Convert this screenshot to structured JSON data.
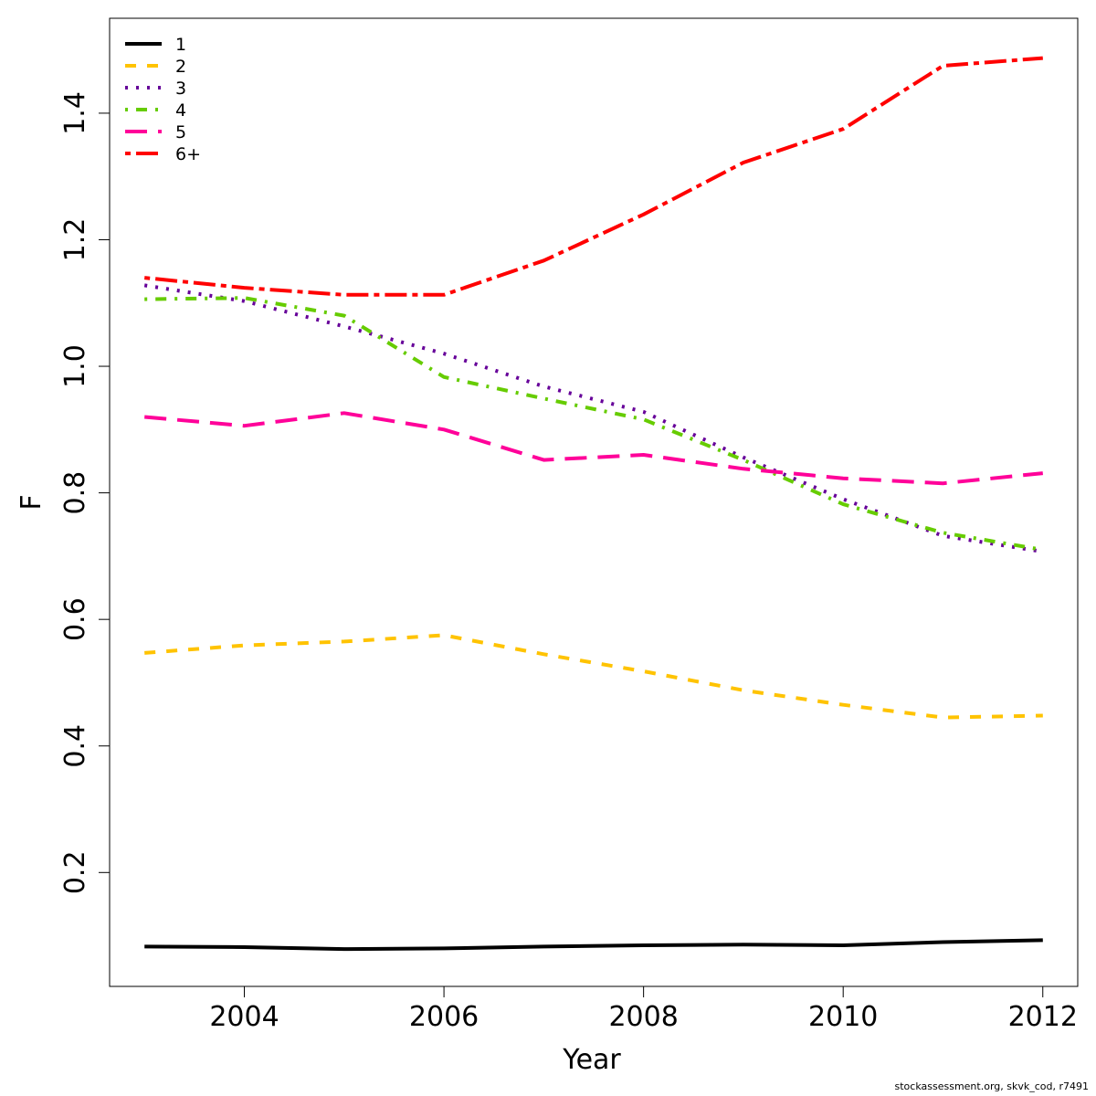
{
  "chart_data": {
    "type": "line",
    "title": "",
    "xlabel": "Year",
    "ylabel": "F",
    "xlim": [
      2002.65,
      2012.35
    ],
    "ylim": [
      0.02,
      1.55
    ],
    "x_ticks": [
      2004,
      2006,
      2008,
      2010,
      2012
    ],
    "x_tick_labels": [
      "2004",
      "2006",
      "2008",
      "2010",
      "2012"
    ],
    "y_ticks": [
      0.2,
      0.4,
      0.6,
      0.8,
      1.0,
      1.2,
      1.4
    ],
    "y_tick_labels": [
      "0.2",
      "0.4",
      "0.6",
      "0.8",
      "1.0",
      "1.2",
      "1.4"
    ],
    "grid": false,
    "legend_position": "top-left",
    "x": [
      2003,
      2004,
      2005,
      2006,
      2007,
      2008,
      2009,
      2010,
      2011,
      2012
    ],
    "series": [
      {
        "name": "1",
        "color": "#000000",
        "dash": "solid",
        "values": [
          0.083,
          0.082,
          0.079,
          0.08,
          0.083,
          0.085,
          0.086,
          0.085,
          0.09,
          0.093
        ]
      },
      {
        "name": "2",
        "color": "#FFC300",
        "dash": "dashed",
        "values": [
          0.547,
          0.559,
          0.565,
          0.575,
          0.545,
          0.518,
          0.488,
          0.465,
          0.445,
          0.448
        ]
      },
      {
        "name": "3",
        "color": "#660099",
        "dash": "dotted",
        "values": [
          1.128,
          1.103,
          1.063,
          1.02,
          0.968,
          0.928,
          0.856,
          0.79,
          0.732,
          0.707
        ]
      },
      {
        "name": "4",
        "color": "#66CC00",
        "dash": "dotdash",
        "values": [
          1.106,
          1.108,
          1.08,
          0.983,
          0.949,
          0.916,
          0.852,
          0.782,
          0.737,
          0.71
        ]
      },
      {
        "name": "5",
        "color": "#FF0099",
        "dash": "longdash",
        "values": [
          0.92,
          0.906,
          0.926,
          0.9,
          0.852,
          0.86,
          0.838,
          0.823,
          0.815,
          0.831
        ]
      },
      {
        "name": "6+",
        "color": "#FF0000",
        "dash": "twodash",
        "values": [
          1.14,
          1.124,
          1.113,
          1.113,
          1.167,
          1.24,
          1.322,
          1.375,
          1.475,
          1.487
        ]
      }
    ]
  },
  "footer": {
    "text": "stockassessment.org, skvk_cod, r7491"
  }
}
